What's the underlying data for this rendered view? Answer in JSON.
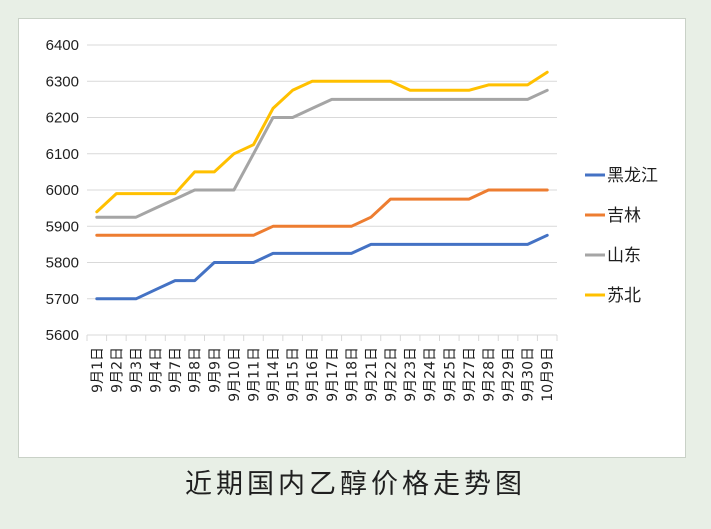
{
  "caption": "近期国内乙醇价格走势图",
  "colors": {
    "heilongjiang": "#4472c4",
    "jilin": "#ed7d31",
    "shandong": "#a5a5a5",
    "subei": "#ffc000",
    "grid": "#d9d9d9"
  },
  "chart_data": {
    "type": "line",
    "x": [
      "9月1日",
      "9月2日",
      "9月3日",
      "9月4日",
      "9月7日",
      "9月8日",
      "9月9日",
      "9月10日",
      "9月11日",
      "9月14日",
      "9月15日",
      "9月16日",
      "9月17日",
      "9月18日",
      "9月21日",
      "9月22日",
      "9月23日",
      "9月24日",
      "9月25日",
      "9月27日",
      "9月28日",
      "9月29日",
      "9月30日",
      "10月9日"
    ],
    "ylim": [
      5600,
      6400
    ],
    "yticks": [
      5600,
      5700,
      5800,
      5900,
      6000,
      6100,
      6200,
      6300,
      6400
    ],
    "grid": true,
    "legend_position": "right",
    "series": [
      {
        "name": "黑龙江",
        "color_key": "heilongjiang",
        "values": [
          5700,
          5700,
          5700,
          5725,
          5750,
          5750,
          5800,
          5800,
          5800,
          5825,
          5825,
          5825,
          5825,
          5825,
          5850,
          5850,
          5850,
          5850,
          5850,
          5850,
          5850,
          5850,
          5850,
          5875
        ]
      },
      {
        "name": "吉林",
        "color_key": "jilin",
        "values": [
          5875,
          5875,
          5875,
          5875,
          5875,
          5875,
          5875,
          5875,
          5875,
          5900,
          5900,
          5900,
          5900,
          5900,
          5925,
          5975,
          5975,
          5975,
          5975,
          5975,
          6000,
          6000,
          6000,
          6000
        ]
      },
      {
        "name": "山东",
        "color_key": "shandong",
        "values": [
          5925,
          5925,
          5925,
          5950,
          5975,
          6000,
          6000,
          6000,
          6100,
          6200,
          6200,
          6225,
          6250,
          6250,
          6250,
          6250,
          6250,
          6250,
          6250,
          6250,
          6250,
          6250,
          6250,
          6275
        ]
      },
      {
        "name": "苏北",
        "color_key": "subei",
        "values": [
          5940,
          5990,
          5990,
          5990,
          5990,
          6050,
          6050,
          6100,
          6125,
          6225,
          6275,
          6300,
          6300,
          6300,
          6300,
          6300,
          6275,
          6275,
          6275,
          6275,
          6290,
          6290,
          6290,
          6325
        ]
      }
    ]
  }
}
